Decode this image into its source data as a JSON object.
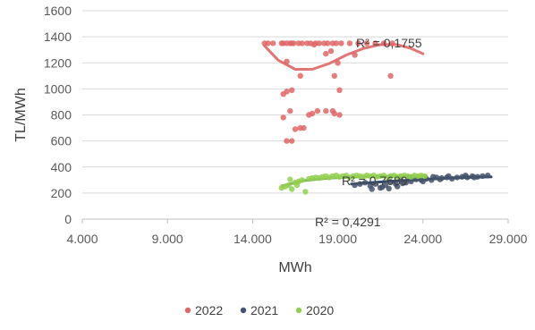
{
  "chart_data": {
    "type": "scatter",
    "title": "",
    "xlabel": "MWh",
    "ylabel": "TL/MWh",
    "xlim": [
      4000,
      29000
    ],
    "ylim": [
      0,
      1600
    ],
    "xticks": [
      4000,
      9000,
      14000,
      19000,
      24000,
      29000
    ],
    "xtick_labels": [
      "4.000",
      "9.000",
      "14.000",
      "19.000",
      "24.000",
      "29.000"
    ],
    "yticks": [
      0,
      200,
      400,
      600,
      800,
      1000,
      1200,
      1400,
      1600
    ],
    "ytick_labels": [
      "0",
      "200",
      "400",
      "600",
      "800",
      "1000",
      "1200",
      "1400",
      "1600"
    ],
    "grid": "horizontal",
    "legend_position": "bottom",
    "series": [
      {
        "name": "2022",
        "color": "#e06666",
        "trend_color": "#e06666",
        "r2_text": "R² = 0,1755",
        "points": [
          [
            14700,
            1350
          ],
          [
            14900,
            1350
          ],
          [
            15200,
            1350
          ],
          [
            15700,
            1350
          ],
          [
            16200,
            1350
          ],
          [
            16700,
            1350
          ],
          [
            17200,
            1350
          ],
          [
            17700,
            1350
          ],
          [
            18200,
            1350
          ],
          [
            18700,
            1350
          ],
          [
            19200,
            1350
          ],
          [
            19700,
            1350
          ],
          [
            20200,
            1350
          ],
          [
            20700,
            1350
          ],
          [
            21200,
            1350
          ],
          [
            21700,
            1350
          ],
          [
            22200,
            1350
          ],
          [
            15800,
            1350
          ],
          [
            16000,
            1350
          ],
          [
            16400,
            1350
          ],
          [
            16900,
            1350
          ],
          [
            17400,
            1350
          ],
          [
            17900,
            1350
          ],
          [
            18400,
            1350
          ],
          [
            18900,
            1350
          ],
          [
            16000,
            1210
          ],
          [
            16300,
            1350
          ],
          [
            17600,
            1340
          ],
          [
            18300,
            1270
          ],
          [
            18600,
            1290
          ],
          [
            19000,
            1200
          ],
          [
            20000,
            1260
          ],
          [
            18800,
            1100
          ],
          [
            16800,
            1100
          ],
          [
            22100,
            1100
          ],
          [
            15800,
            960
          ],
          [
            16000,
            980
          ],
          [
            16300,
            990
          ],
          [
            19100,
            990
          ],
          [
            16200,
            830
          ],
          [
            17500,
            810
          ],
          [
            17800,
            830
          ],
          [
            18300,
            830
          ],
          [
            18700,
            830
          ],
          [
            15800,
            780
          ],
          [
            17300,
            800
          ],
          [
            18800,
            810
          ],
          [
            19100,
            800
          ],
          [
            16800,
            700
          ],
          [
            17000,
            700
          ],
          [
            16500,
            690
          ],
          [
            16000,
            600
          ],
          [
            16300,
            600
          ]
        ],
        "trend": [
          [
            14700,
            1330
          ],
          [
            15500,
            1220
          ],
          [
            16500,
            1150
          ],
          [
            17500,
            1150
          ],
          [
            18500,
            1195
          ],
          [
            19500,
            1260
          ],
          [
            20500,
            1310
          ],
          [
            21500,
            1340
          ],
          [
            22500,
            1340
          ],
          [
            23300,
            1310
          ],
          [
            24000,
            1270
          ]
        ]
      },
      {
        "name": "2021",
        "color": "#44546a",
        "trend_color": "#1f3864",
        "r2_text": "R² = 0,4291",
        "points": [
          [
            20000,
            260
          ],
          [
            20300,
            270
          ],
          [
            20600,
            280
          ],
          [
            20900,
            255
          ],
          [
            21200,
            270
          ],
          [
            21500,
            240
          ],
          [
            21800,
            260
          ],
          [
            22100,
            285
          ],
          [
            22400,
            270
          ],
          [
            22700,
            300
          ],
          [
            23000,
            280
          ],
          [
            23300,
            290
          ],
          [
            23600,
            305
          ],
          [
            23900,
            300
          ],
          [
            24200,
            310
          ],
          [
            24500,
            300
          ],
          [
            24800,
            320
          ],
          [
            25100,
            315
          ],
          [
            25400,
            320
          ],
          [
            25700,
            310
          ],
          [
            26000,
            320
          ],
          [
            26300,
            325
          ],
          [
            26600,
            320
          ],
          [
            26900,
            330
          ],
          [
            27200,
            325
          ],
          [
            27500,
            330
          ],
          [
            27800,
            335
          ],
          [
            25000,
            305
          ],
          [
            24000,
            290
          ],
          [
            23500,
            310
          ],
          [
            26500,
            335
          ],
          [
            27000,
            320
          ],
          [
            25500,
            330
          ],
          [
            21000,
            230
          ],
          [
            22000,
            235
          ],
          [
            22500,
            250
          ],
          [
            21600,
            245
          ],
          [
            24600,
            325
          ],
          [
            23200,
            320
          ],
          [
            22800,
            275
          ]
        ],
        "trend": [
          [
            19800,
            270
          ],
          [
            22000,
            290
          ],
          [
            24000,
            305
          ],
          [
            26000,
            318
          ],
          [
            28000,
            325
          ]
        ]
      },
      {
        "name": "2020",
        "color": "#92d050",
        "trend_color": "#70ad47",
        "r2_text": "R² = 0,7689",
        "points": [
          [
            15700,
            240
          ],
          [
            15900,
            250
          ],
          [
            16100,
            260
          ],
          [
            16300,
            230
          ],
          [
            16500,
            280
          ],
          [
            16700,
            290
          ],
          [
            16900,
            300
          ],
          [
            17100,
            210
          ],
          [
            17300,
            310
          ],
          [
            17500,
            315
          ],
          [
            17700,
            320
          ],
          [
            17900,
            315
          ],
          [
            18100,
            325
          ],
          [
            18300,
            330
          ],
          [
            18500,
            320
          ],
          [
            18700,
            330
          ],
          [
            18900,
            335
          ],
          [
            19100,
            325
          ],
          [
            19300,
            330
          ],
          [
            19500,
            335
          ],
          [
            19700,
            320
          ],
          [
            19900,
            330
          ],
          [
            20100,
            335
          ],
          [
            20300,
            330
          ],
          [
            20500,
            325
          ],
          [
            20700,
            335
          ],
          [
            20900,
            330
          ],
          [
            21100,
            335
          ],
          [
            21300,
            325
          ],
          [
            21500,
            330
          ],
          [
            21700,
            335
          ],
          [
            21900,
            320
          ],
          [
            22100,
            330
          ],
          [
            22300,
            335
          ],
          [
            22500,
            325
          ],
          [
            22700,
            330
          ],
          [
            22900,
            335
          ],
          [
            23100,
            330
          ],
          [
            23300,
            325
          ],
          [
            23500,
            335
          ],
          [
            23700,
            330
          ],
          [
            23900,
            335
          ],
          [
            24100,
            330
          ],
          [
            16200,
            305
          ],
          [
            16600,
            260
          ]
        ],
        "trend": [
          [
            15700,
            255
          ],
          [
            17000,
            295
          ],
          [
            18500,
            315
          ],
          [
            20500,
            325
          ],
          [
            22500,
            330
          ],
          [
            24200,
            332
          ]
        ]
      }
    ]
  }
}
